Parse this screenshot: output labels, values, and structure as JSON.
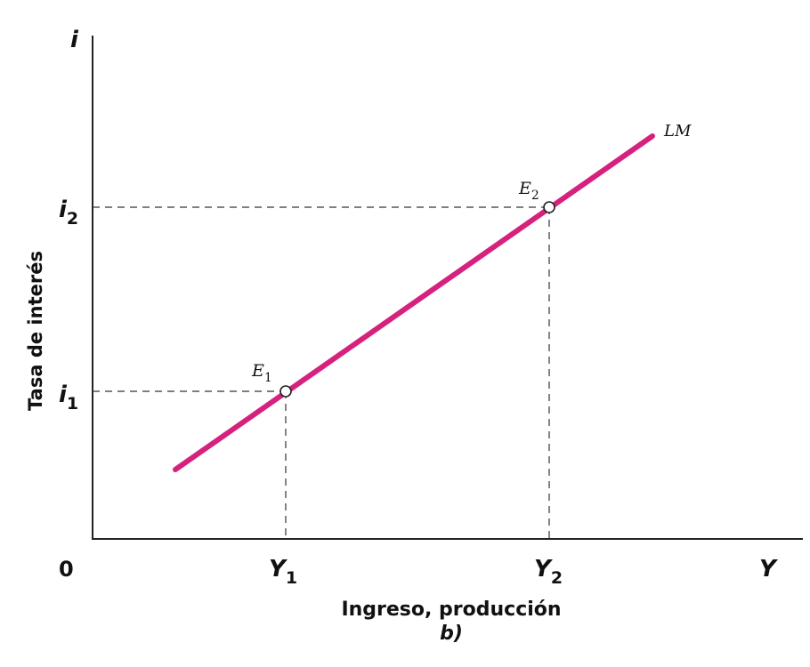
{
  "axes": {
    "y_symbol": "i",
    "x_symbol": "Y",
    "origin": "0",
    "y_title": "Tasa de interés",
    "x_title": "Ingreso, producción",
    "panel": "b)"
  },
  "ticks": {
    "i1": {
      "base": "i",
      "sub": "1"
    },
    "i2": {
      "base": "i",
      "sub": "2"
    },
    "Y1": {
      "base": "Y",
      "sub": "1"
    },
    "Y2": {
      "base": "Y",
      "sub": "2"
    }
  },
  "curve": {
    "label": "LM",
    "color": "#d6217e"
  },
  "points": {
    "E1": {
      "base": "E",
      "sub": "1"
    },
    "E2": {
      "base": "E",
      "sub": "2"
    }
  }
}
